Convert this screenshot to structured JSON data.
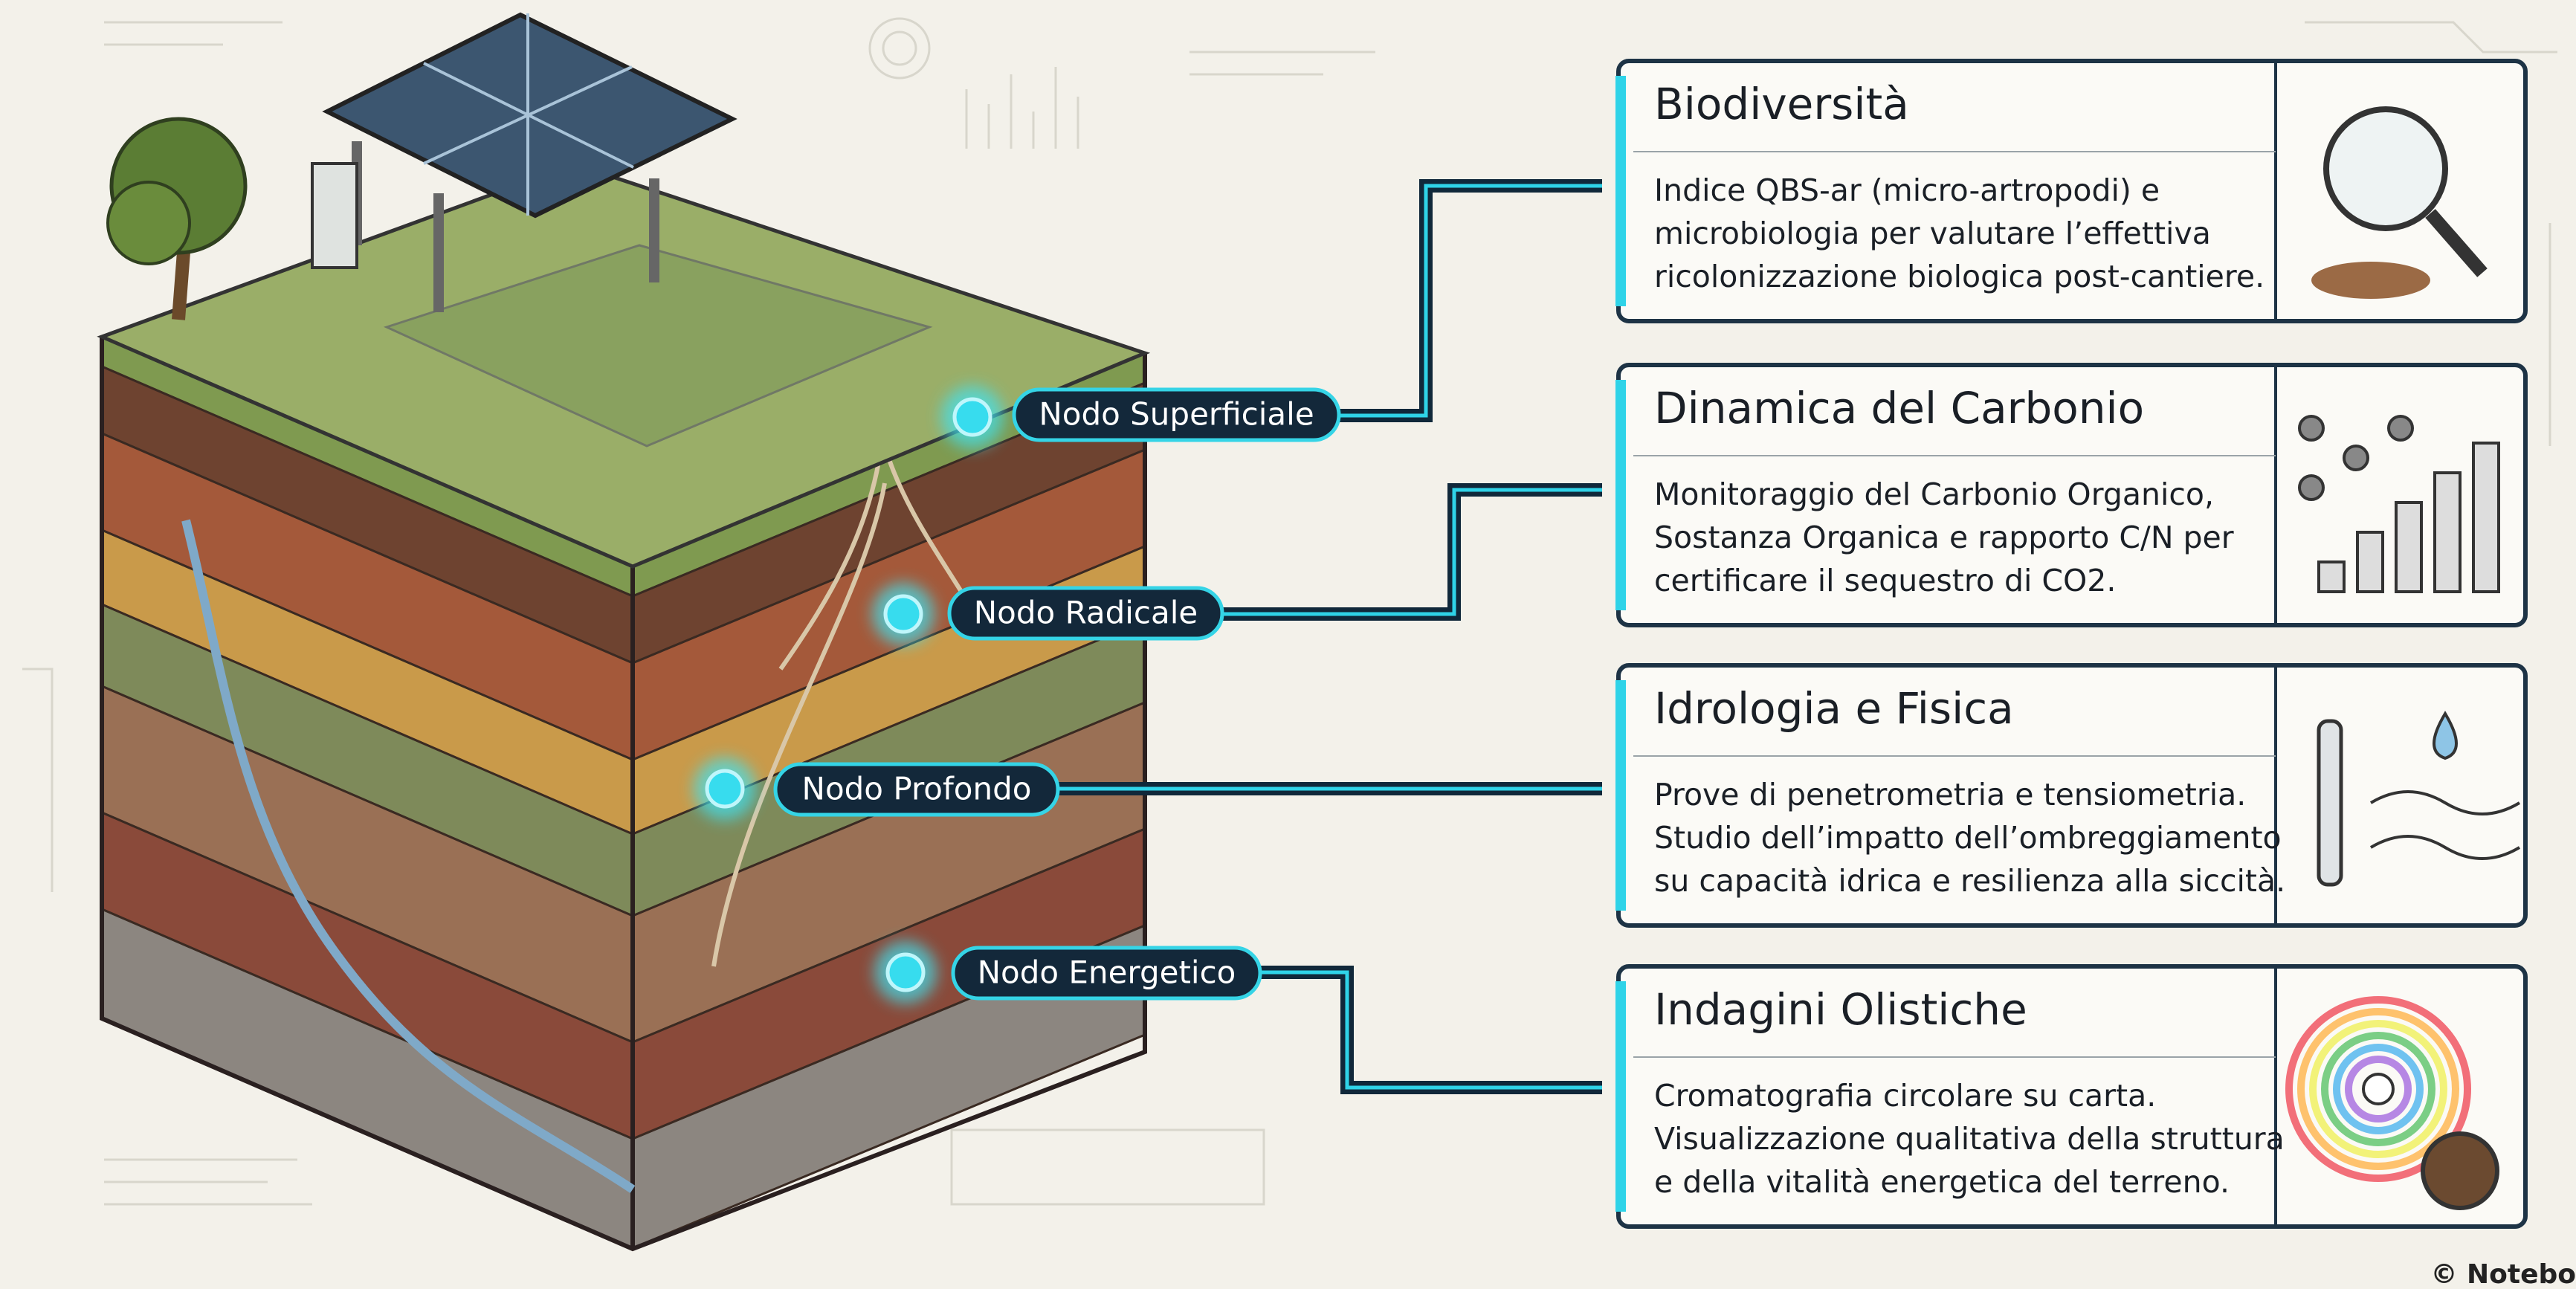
{
  "nodes": [
    "Nodo Superficiale",
    "Nodo Radicale",
    "Nodo Profondo",
    "Nodo Energetico"
  ],
  "cards": [
    {
      "title": "Biodiversità",
      "lines": [
        "Indice QBS-ar (micro-artropodi) e",
        "microbiologia per valutare l’effettiva",
        "ricolonizzazione biologica post-cantiere."
      ]
    },
    {
      "title": "Dinamica del Carbonio",
      "lines": [
        "Monitoraggio del Carbonio Organico,",
        "Sostanza Organica e rapporto C/N per",
        "certificare il sequestro di CO2."
      ]
    },
    {
      "title": "Idrologia e Fisica",
      "lines": [
        "Prove di penetrometria e tensiometria.",
        "Studio dell’impatto dell’ombreggiamento",
        "su capacità idrica e resilienza alla siccità."
      ]
    },
    {
      "title": "Indagini Olistiche",
      "lines": [
        "Cromatografia circolare su carta.",
        "Visualizzazione qualitativa della struttura",
        "e della vitalità energetica del terreno."
      ]
    }
  ],
  "footer": "© Notebo"
}
